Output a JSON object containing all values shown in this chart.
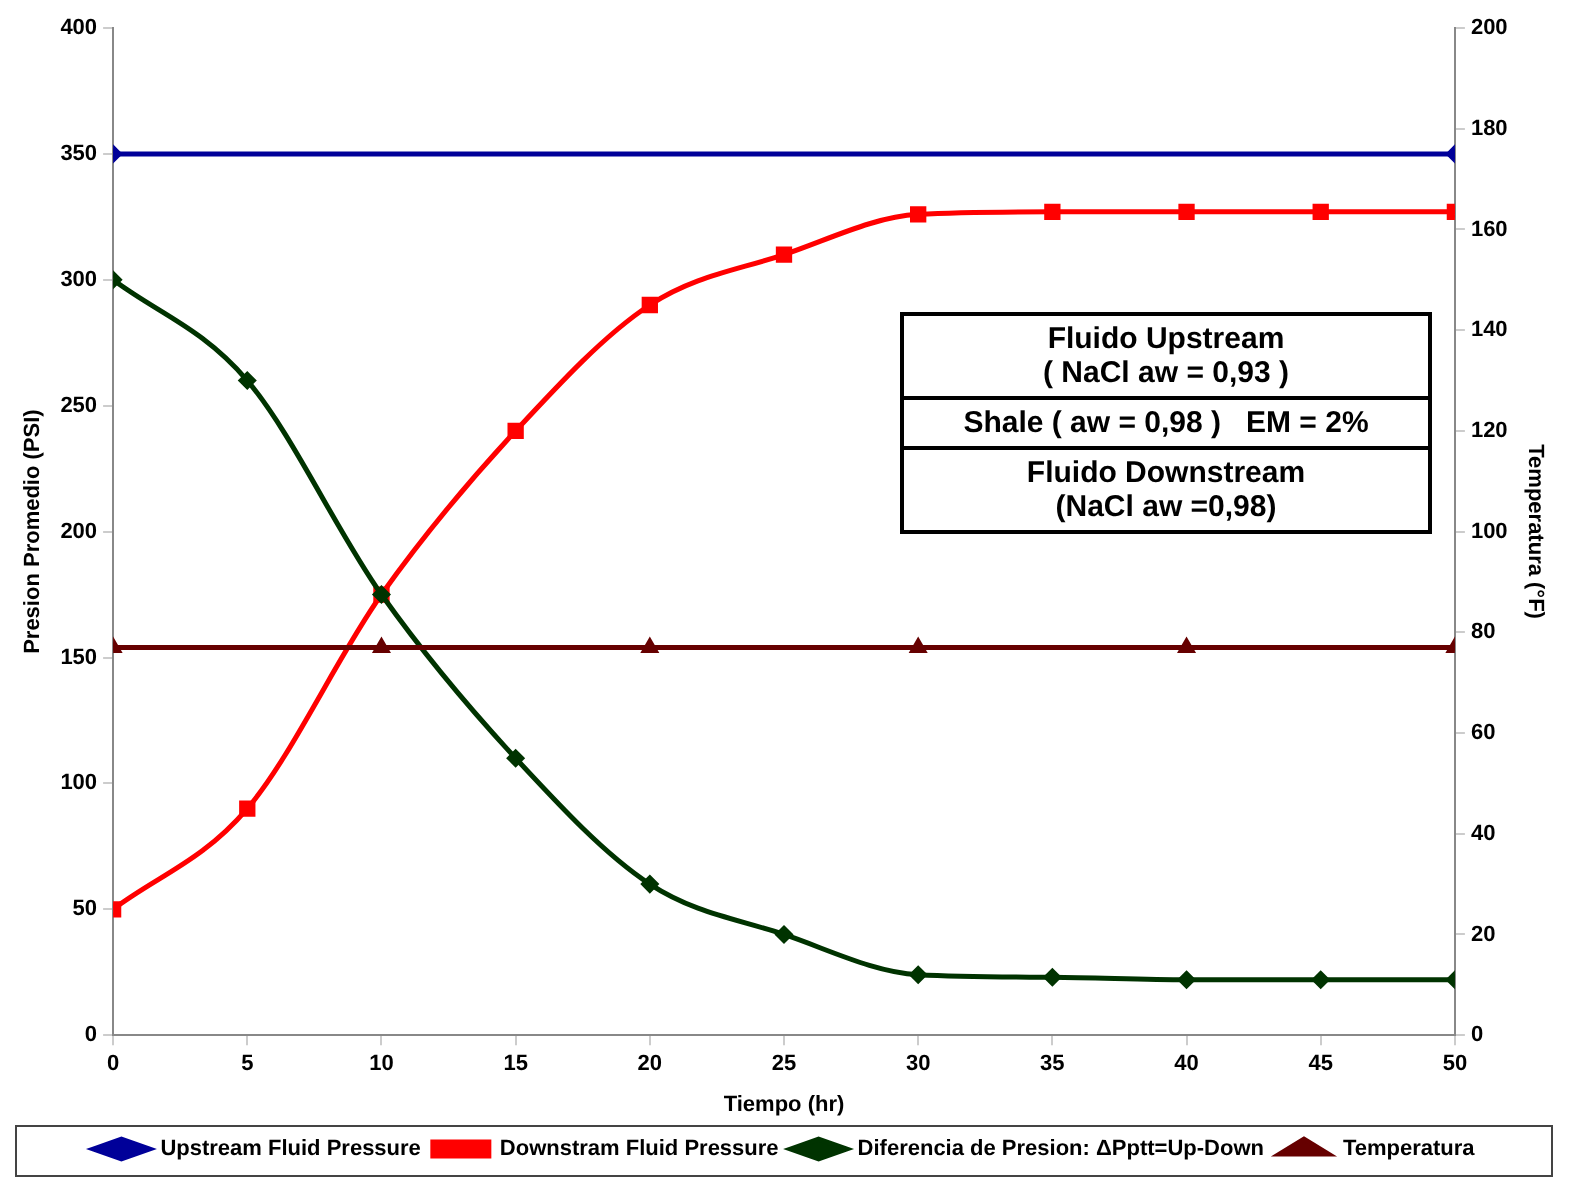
{
  "chart_data": {
    "type": "line",
    "xlabel": "Tiempo (hr)",
    "ylabel": "Presion Promedio (PSI)",
    "y2label": "Temperatura (°F)",
    "xlim": [
      0,
      50
    ],
    "xticks": [
      0,
      5,
      10,
      15,
      20,
      25,
      30,
      35,
      40,
      45,
      50
    ],
    "ylim": [
      0,
      400
    ],
    "yticks": [
      0,
      50,
      100,
      150,
      200,
      250,
      300,
      350,
      400
    ],
    "y2lim": [
      0,
      200
    ],
    "y2ticks": [
      0,
      20,
      40,
      60,
      80,
      100,
      120,
      140,
      160,
      180,
      200
    ],
    "grid": false,
    "legend": "bottom",
    "series": [
      {
        "name": "Upstream Fluid Pressure",
        "color": "#000099",
        "marker": "diamond",
        "x": [
          0,
          50
        ],
        "values": [
          350,
          350
        ]
      },
      {
        "name": "Downstram Fluid Pressure",
        "color": "#ff0000",
        "marker": "square",
        "x": [
          0,
          5,
          10,
          15,
          20,
          25,
          30,
          35,
          40,
          45,
          50
        ],
        "values": [
          50,
          90,
          175,
          240,
          290,
          310,
          326,
          327,
          327,
          327,
          327
        ]
      },
      {
        "name": "Diferencia de Presion: ΔPptt=Up-Down",
        "color": "#003300",
        "marker": "diamond",
        "x": [
          0,
          5,
          10,
          15,
          20,
          25,
          30,
          35,
          40,
          45,
          50
        ],
        "values": [
          300,
          260,
          175,
          110,
          60,
          40,
          24,
          23,
          22,
          22,
          22
        ]
      },
      {
        "name": "Temperatura",
        "color": "#660000",
        "marker": "triangle",
        "axis": "y2",
        "x": [
          0,
          10,
          20,
          30,
          40,
          50
        ],
        "values": [
          77,
          77,
          77,
          77,
          77,
          77
        ]
      }
    ],
    "annotations": [
      "Fluido Upstream\n( NaCl aw = 0,93 )",
      "Shale ( aw = 0,98 )   EM = 2%",
      "Fluido Downstream\n(NaCl aw =0,98)"
    ]
  }
}
